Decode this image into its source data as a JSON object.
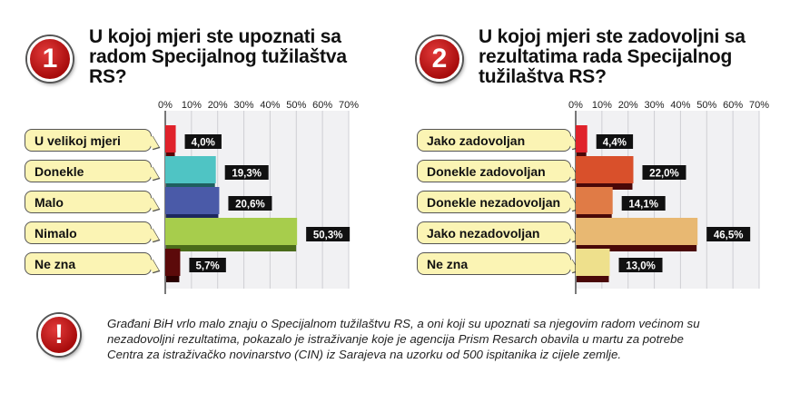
{
  "note_icon": "exclamation-icon",
  "note": "Građani BiH vrlo malo znaju o Specijalnom tužilaštvu RS, a oni koji su upoznati sa njegovim radom većinom su nezadovoljni rezultatima, pokazalo je istraživanje koje je agencija Prism Resarch obavila u martu za potrebe Centra za istraživačko novinarstvo (CIN) iz Sarajeva na uzorku od 500 ispitanika iz cijele zemlje.",
  "chart_data": [
    {
      "type": "bar",
      "number": "1",
      "title": "U kojoj mjeri ste upoznati sa radom Specijalnog tužilaštva RS?",
      "categories": [
        "U velikoj mjeri",
        "Donekle",
        "Malo",
        "Nimalo",
        "Ne zna"
      ],
      "values": [
        4.0,
        19.3,
        20.6,
        50.3,
        5.7
      ],
      "value_labels": [
        "4,0%",
        "19,3%",
        "20,6%",
        "50,3%",
        "5,7%"
      ],
      "colors": [
        "#e0222b",
        "#4fc4c4",
        "#4a5aa8",
        "#a7cd4c",
        "#5c0a0a"
      ],
      "shadow_colors": [
        "#5a0505",
        "#1f5f5f",
        "#1d285e",
        "#4a6b1a",
        "#2a0000"
      ],
      "xlim": [
        0,
        70
      ],
      "x_ticks": [
        "0%",
        "10%",
        "20%",
        "30%",
        "40%",
        "50%",
        "60%",
        "70%"
      ],
      "grid": true,
      "orientation": "horizontal"
    },
    {
      "type": "bar",
      "number": "2",
      "title": "U kojoj mjeri ste zadovoljni sa rezultatima rada Specijalnog tužilaštva RS?",
      "categories": [
        "Jako zadovoljan",
        "Donekle zadovoljan",
        "Donekle nezadovoljan",
        "Jako nezadovoljan",
        "Ne zna"
      ],
      "values": [
        4.4,
        22.0,
        14.1,
        46.5,
        13.0
      ],
      "value_labels": [
        "4,4%",
        "22,0%",
        "14,1%",
        "46,5%",
        "13,0%"
      ],
      "colors": [
        "#e0222b",
        "#d9502b",
        "#e07b46",
        "#e8b872",
        "#eee08c"
      ],
      "shadow_colors": [
        "#4a0808",
        "#4a0808",
        "#4a0808",
        "#4a0808",
        "#4a0808"
      ],
      "xlim": [
        0,
        70
      ],
      "x_ticks": [
        "0%",
        "10%",
        "20%",
        "30%",
        "40%",
        "50%",
        "60%",
        "70%"
      ],
      "grid": true,
      "orientation": "horizontal"
    }
  ]
}
